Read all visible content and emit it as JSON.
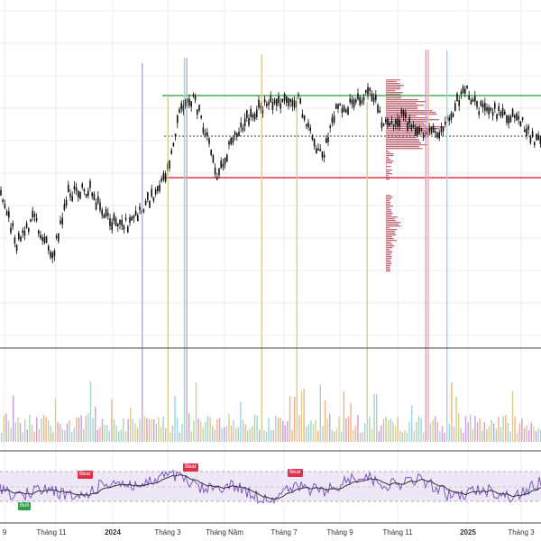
{
  "chart_data": {
    "type": "candlestick",
    "panes": [
      "price",
      "volume",
      "rsi"
    ],
    "x_axis": {
      "labels": [
        "9",
        "Tháng 11",
        "2024",
        "Tháng 3",
        "Tháng Năm",
        "Tháng 7",
        "Tháng 9",
        "Tháng 11",
        "2025",
        "Tháng 3"
      ],
      "bold": [
        "2024",
        "2025"
      ]
    },
    "price": {
      "resistance_line_color": "#4caf50",
      "support_line_color": "#e0314b",
      "poc_line": "dotted",
      "volume_profile_color": "#b04a5a"
    },
    "volume": {
      "bar_colors": [
        "#f4b183",
        "#9fd3e8",
        "#c9a0dc",
        "#d6d08a",
        "#a8d5b8"
      ]
    },
    "rsi": {
      "band_color": "#ede7f6",
      "rsi_color": "#7e57c2",
      "ma_color": "#333333"
    },
    "signals": [
      {
        "label": "Bear",
        "kind": "bear"
      },
      {
        "label": "Bear",
        "kind": "bear"
      },
      {
        "label": "Bear",
        "kind": "bear"
      },
      {
        "label": "Bull",
        "kind": "bull"
      }
    ]
  }
}
